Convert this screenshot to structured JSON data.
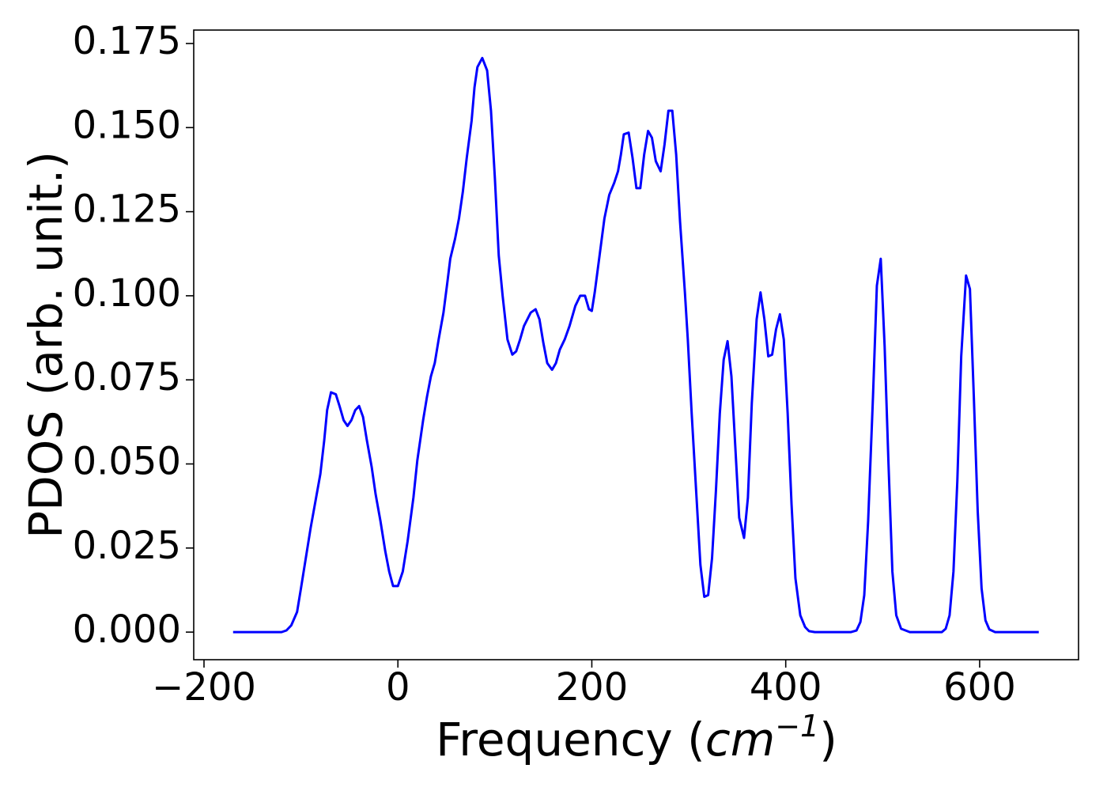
{
  "chart_data": {
    "type": "line",
    "xlabel": {
      "text": "Frequency (",
      "unit": "cm",
      "exponent": "−1",
      "close": ")"
    },
    "ylabel": "PDOS (arb. unit.)",
    "color": "#0000ff",
    "xlim": [
      -210.6,
      702.0
    ],
    "ylim": [
      -0.0082,
      0.179
    ],
    "xticks": [
      {
        "value": -200,
        "label": "−200"
      },
      0,
      200,
      400,
      600
    ],
    "yticks": [
      {
        "value": 0,
        "label": "0.000"
      },
      {
        "value": 0.025,
        "label": "0.025"
      },
      {
        "value": 0.05,
        "label": "0.050"
      },
      {
        "value": 0.075,
        "label": "0.075"
      },
      {
        "value": 0.1,
        "label": "0.100"
      },
      {
        "value": 0.125,
        "label": "0.125"
      },
      {
        "value": 0.15,
        "label": "0.150"
      },
      {
        "value": 0.175,
        "label": "0.175"
      }
    ],
    "x": [
      -170,
      -165,
      -160,
      -155,
      -150,
      -145,
      -140,
      -135,
      -130,
      -125,
      -120,
      -115,
      -110,
      -104,
      -100,
      -95,
      -90,
      -85,
      -80,
      -76,
      -73,
      -69,
      -64,
      -60,
      -56,
      -52,
      -48,
      -44,
      -40,
      -36,
      -32,
      -27,
      -23,
      -18,
      -13,
      -9,
      -5,
      0,
      5,
      10,
      16,
      20,
      26,
      30,
      34,
      38,
      42,
      47,
      51,
      54,
      59,
      63,
      67,
      71,
      76,
      79,
      82,
      87,
      92,
      96,
      100,
      104,
      108,
      113,
      118,
      122,
      126,
      130,
      137,
      142,
      146,
      150,
      154,
      159,
      163,
      167,
      172,
      177,
      183,
      188,
      193,
      197,
      200,
      203,
      208,
      213,
      218,
      223,
      227,
      230,
      233,
      238,
      242,
      246,
      250,
      254,
      258,
      262,
      266,
      271,
      275,
      279,
      283,
      287,
      291,
      296,
      299,
      303,
      308,
      312,
      316,
      320,
      324,
      328,
      332,
      336,
      340,
      344,
      348,
      352,
      357,
      361,
      365,
      370,
      374,
      378,
      382,
      386,
      390,
      394,
      398,
      402,
      406,
      410,
      415,
      420,
      424,
      430,
      440,
      450,
      460,
      467,
      473,
      477,
      481,
      485,
      490,
      494,
      498,
      502,
      506,
      510,
      514,
      519,
      528,
      540,
      550,
      561,
      565,
      569,
      573,
      577,
      581,
      586,
      590,
      594,
      598,
      602,
      606,
      610,
      616,
      630,
      645,
      661
    ],
    "values": [
      0,
      0,
      0,
      0,
      0,
      0,
      0,
      0,
      0,
      0,
      0,
      0.0005,
      0.002,
      0.006,
      0.013,
      0.022,
      0.031,
      0.039,
      0.047,
      0.057,
      0.066,
      0.0713,
      0.0707,
      0.067,
      0.063,
      0.0613,
      0.063,
      0.066,
      0.0672,
      0.064,
      0.057,
      0.049,
      0.041,
      0.033,
      0.024,
      0.018,
      0.0137,
      0.0137,
      0.018,
      0.027,
      0.04,
      0.051,
      0.063,
      0.07,
      0.076,
      0.08,
      0.087,
      0.095,
      0.104,
      0.111,
      0.117,
      0.123,
      0.131,
      0.141,
      0.152,
      0.162,
      0.168,
      0.1707,
      0.167,
      0.155,
      0.135,
      0.112,
      0.1,
      0.087,
      0.0825,
      0.0835,
      0.087,
      0.091,
      0.095,
      0.096,
      0.093,
      0.086,
      0.08,
      0.078,
      0.08,
      0.084,
      0.087,
      0.091,
      0.097,
      0.1,
      0.1,
      0.096,
      0.0955,
      0.101,
      0.112,
      0.123,
      0.13,
      0.1335,
      0.137,
      0.142,
      0.148,
      0.1485,
      0.141,
      0.132,
      0.132,
      0.142,
      0.149,
      0.147,
      0.14,
      0.137,
      0.145,
      0.155,
      0.155,
      0.142,
      0.122,
      0.101,
      0.087,
      0.065,
      0.04,
      0.02,
      0.0105,
      0.011,
      0.022,
      0.042,
      0.065,
      0.081,
      0.0865,
      0.076,
      0.055,
      0.034,
      0.028,
      0.04,
      0.068,
      0.093,
      0.101,
      0.093,
      0.082,
      0.0825,
      0.09,
      0.0945,
      0.087,
      0.065,
      0.038,
      0.016,
      0.005,
      0.0015,
      0.0003,
      0,
      0,
      0,
      0,
      0,
      0.0005,
      0.003,
      0.011,
      0.033,
      0.07,
      0.103,
      0.111,
      0.085,
      0.05,
      0.018,
      0.005,
      0.001,
      0,
      0,
      0,
      0,
      0.001,
      0.005,
      0.018,
      0.045,
      0.082,
      0.106,
      0.102,
      0.07,
      0.036,
      0.013,
      0.0035,
      0.0008,
      0,
      0,
      0,
      0
    ]
  }
}
